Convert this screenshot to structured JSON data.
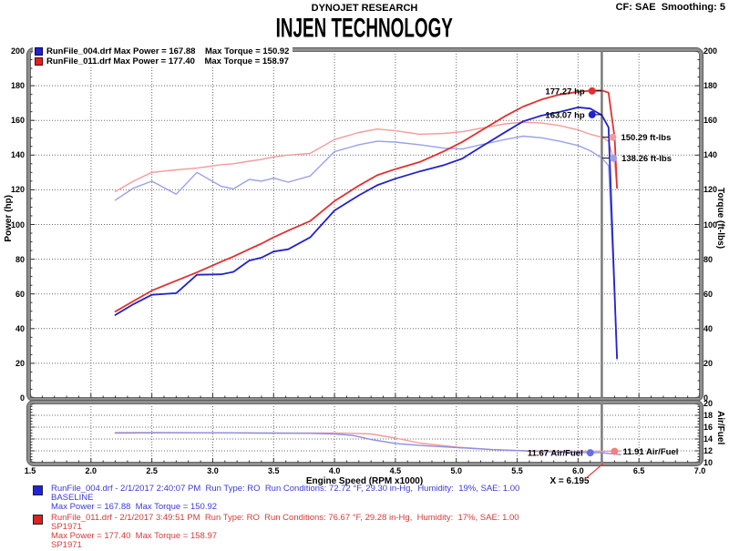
{
  "header": {
    "company": "DYNOJET RESEARCH",
    "settings": "CF: SAE  Smoothing: 5",
    "title": "INJEN TECHNOLOGY"
  },
  "legend": {
    "rows": [
      {
        "square_color": "#2222cc",
        "square_border": "#000066",
        "text": "RunFile_004.drf Max Power = 167.88    Max Torque = 150.92"
      },
      {
        "square_color": "#dd2222",
        "square_border": "#660000",
        "text": "RunFile_011.drf Max Power = 177.40    Max Torque = 158.97"
      }
    ]
  },
  "cursor": {
    "x": 6.195,
    "label": "X = 6.195",
    "color": "#7a7a7a",
    "leader_color": "#e04040"
  },
  "chart_data": [
    {
      "type": "line",
      "xlabel": "Engine Speed (RPM x1000)",
      "ylabel_left": "Power (hp)",
      "ylabel_right": "Torque (ft-lbs)",
      "xlim": [
        1.5,
        7.0
      ],
      "ylim": [
        0,
        200
      ],
      "label_step": 20,
      "grid": {
        "x_start": 2.0,
        "x_step": 0.5,
        "y_start": 20,
        "y_end": 180,
        "y_step": 20
      },
      "ticks": {
        "x_major": 0.5,
        "x_minor": 0.1,
        "y_major": 20,
        "y_minor": 5
      },
      "series": [
        {
          "name": "torque-runfile-011",
          "color": "#f49a9a",
          "width": 1.4,
          "x": [
            2.2,
            2.35,
            2.5,
            2.7,
            2.87,
            3.07,
            3.17,
            3.3,
            3.4,
            3.5,
            3.62,
            3.8,
            4.0,
            4.2,
            4.35,
            4.5,
            4.7,
            4.9,
            5.05,
            5.2,
            5.4,
            5.55,
            5.7,
            5.85,
            6.0,
            6.1,
            6.195,
            6.25,
            6.3,
            6.32
          ],
          "y": [
            119,
            125,
            130,
            131.5,
            132.5,
            134.5,
            135,
            136.5,
            137.5,
            139,
            140,
            141,
            149,
            153,
            155,
            154,
            152,
            152.5,
            153.5,
            155.5,
            158,
            158.97,
            158.5,
            157,
            154.5,
            152,
            150.29,
            148,
            135,
            121
          ]
        },
        {
          "name": "torque-runfile-004",
          "color": "#9aa0ea",
          "width": 1.4,
          "x": [
            2.2,
            2.35,
            2.5,
            2.7,
            2.87,
            3.07,
            3.17,
            3.3,
            3.4,
            3.5,
            3.62,
            3.8,
            4.0,
            4.2,
            4.35,
            4.5,
            4.7,
            4.9,
            5.05,
            5.2,
            5.4,
            5.55,
            5.7,
            5.85,
            6.0,
            6.1,
            6.195,
            6.25,
            6.3,
            6.32
          ],
          "y": [
            114,
            121,
            125,
            117.5,
            130,
            122,
            120.5,
            126,
            125,
            126.7,
            124.4,
            128,
            142,
            146,
            148,
            147.5,
            146,
            144,
            143.5,
            146,
            149,
            150.92,
            150,
            148,
            145.5,
            142.5,
            138.26,
            134,
            58,
            22
          ]
        },
        {
          "name": "power-runfile-011",
          "color": "#e03030",
          "width": 1.8,
          "x": [
            2.2,
            2.35,
            2.5,
            2.7,
            2.87,
            3.07,
            3.17,
            3.3,
            3.4,
            3.5,
            3.62,
            3.8,
            4.0,
            4.2,
            4.35,
            4.5,
            4.7,
            4.9,
            5.05,
            5.2,
            5.4,
            5.55,
            5.7,
            5.85,
            6.0,
            6.1,
            6.195,
            6.25,
            6.3,
            6.32
          ],
          "y": [
            49.8,
            55.9,
            61.9,
            67.6,
            72.4,
            78.6,
            81.5,
            85.8,
            89.0,
            92.6,
            96.5,
            102.0,
            113.5,
            122.4,
            128.4,
            131.9,
            136.0,
            142.3,
            147.6,
            154.0,
            162.4,
            168.0,
            172.0,
            174.9,
            176.5,
            177.1,
            177.27,
            176.0,
            150,
            121
          ]
        },
        {
          "name": "power-runfile-004",
          "color": "#2222cc",
          "width": 1.8,
          "x": [
            2.2,
            2.35,
            2.5,
            2.7,
            2.87,
            3.07,
            3.17,
            3.3,
            3.4,
            3.5,
            3.62,
            3.8,
            4.0,
            4.2,
            4.35,
            4.5,
            4.7,
            4.9,
            5.05,
            5.2,
            5.4,
            5.55,
            5.7,
            5.85,
            6.0,
            6.1,
            6.195,
            6.25,
            6.3,
            6.32
          ],
          "y": [
            47.8,
            54.1,
            59.5,
            60.4,
            71.0,
            71.3,
            72.7,
            79.2,
            80.9,
            84.4,
            85.7,
            92.6,
            108.1,
            116.8,
            122.6,
            126.4,
            130.6,
            134.3,
            138.0,
            144.6,
            153.2,
            159.5,
            162.8,
            164.9,
            167.5,
            166.8,
            163.07,
            156.0,
            60,
            23
          ]
        }
      ],
      "annotations": [
        {
          "text": "177.27 hp",
          "dot_x": 6.115,
          "dot_y": 177.0,
          "color": "#e03030",
          "side": "left",
          "leader_to": 6.195
        },
        {
          "text": "163.07 hp",
          "dot_x": 6.115,
          "dot_y": 163.3,
          "color": "#2222cc",
          "side": "left",
          "leader_to": 6.195
        },
        {
          "text": "150.29 ft-lbs",
          "dot_x": 6.285,
          "dot_y": 150.29,
          "color": "#f49a9a",
          "side": "right",
          "leader_to": 6.195
        },
        {
          "text": "138.26 ft-lbs",
          "dot_x": 6.29,
          "dot_y": 138.26,
          "color": "#9aa0ea",
          "side": "right",
          "leader_to": 6.195
        }
      ]
    },
    {
      "type": "line",
      "ylabel_right": "Air/Fuel",
      "xlim": [
        1.5,
        7.0
      ],
      "ylim": [
        10,
        20
      ],
      "label_step": 2,
      "grid": {
        "x_start": 2.0,
        "x_step": 0.5,
        "y_start": 12,
        "y_end": 18,
        "y_step": 2
      },
      "ticks": {
        "x_major": 0.5,
        "x_minor": 0.1,
        "y_major": 2,
        "y_minor": 0.5
      },
      "series": [
        {
          "name": "airfuel-runfile-011",
          "color": "#f49a9a",
          "width": 1.4,
          "x": [
            2.2,
            2.6,
            3.0,
            3.4,
            3.8,
            4.0,
            4.15,
            4.3,
            4.5,
            4.7,
            5.0,
            5.3,
            5.6,
            5.9,
            6.1,
            6.195,
            6.3,
            6.35
          ],
          "y": [
            15.1,
            15.1,
            15.05,
            15.0,
            15.0,
            15.0,
            14.95,
            14.85,
            14.15,
            13.3,
            12.65,
            12.2,
            12.0,
            11.9,
            11.9,
            11.91,
            11.95,
            11.97
          ]
        },
        {
          "name": "airfuel-runfile-004",
          "color": "#8a8ee8",
          "width": 1.4,
          "x": [
            2.2,
            2.6,
            3.0,
            3.4,
            3.8,
            4.0,
            4.15,
            4.3,
            4.5,
            4.7,
            5.0,
            5.3,
            5.6,
            5.9,
            6.1,
            6.195,
            6.3,
            6.35
          ],
          "y": [
            15.0,
            15.05,
            15.05,
            15.0,
            14.95,
            14.85,
            14.6,
            13.9,
            13.25,
            12.9,
            12.55,
            12.2,
            11.95,
            11.75,
            11.67,
            11.67,
            11.45,
            11.35
          ]
        }
      ],
      "annotations": [
        {
          "text": "11.67 Air/Fuel",
          "dot_x": 6.1,
          "dot_y": 11.67,
          "color": "#6a6ee0",
          "side": "left"
        },
        {
          "text": "11.91 Air/Fuel",
          "dot_x": 6.3,
          "dot_y": 11.91,
          "color": "#f08080",
          "side": "right"
        }
      ]
    }
  ],
  "runs": [
    {
      "text_color": "#3a3ad6",
      "square_color": "#2222dd",
      "lines": [
        "RunFile_004.drf - 2/1/2017 2:40:07 PM  Run Type: RO  Run Conditions: 72.72 °F, 29.30 in-Hg,  Humidity:  19%, SAE: 1.00",
        "BASELINE",
        "Max Power = 167.88  Max Torque = 150.92"
      ]
    },
    {
      "text_color": "#d63a3a",
      "square_color": "#dd2222",
      "lines": [
        "RunFile_011.drf - 2/1/2017 3:49:51 PM  Run Type: RO  Run Conditions: 76.67 °F, 29.28 in-Hg,  Humidity:  17%, SAE: 1.00",
        "SP1971",
        "Max Power = 177.40  Max Torque = 158.97",
        "SP1971"
      ]
    }
  ]
}
